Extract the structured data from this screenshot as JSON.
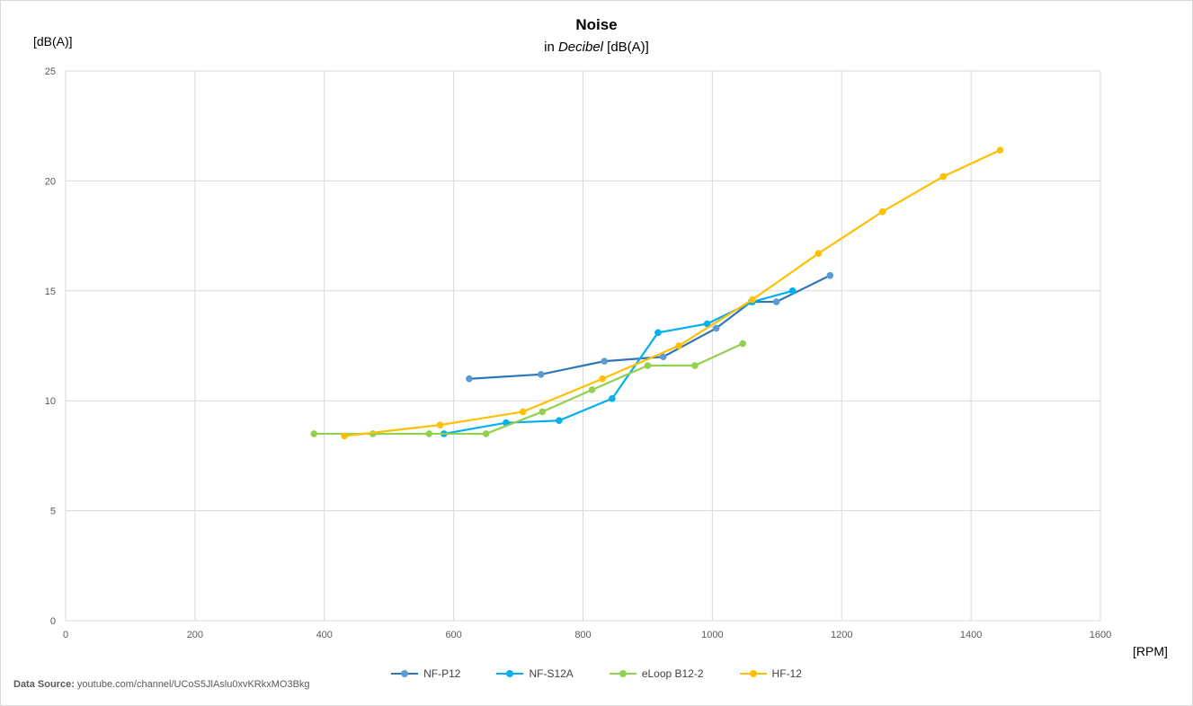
{
  "chart_data": {
    "type": "line",
    "title": "Noise",
    "subtitle_prefix": "in ",
    "subtitle_italic": "Decibel",
    "subtitle_suffix": " [dB(A)]",
    "ylabel": "[dB(A)]",
    "xlabel": "[RPM]",
    "xlim": [
      0,
      1600
    ],
    "ylim": [
      0,
      25
    ],
    "xticks": [
      0,
      200,
      400,
      600,
      800,
      1000,
      1200,
      1400,
      1600
    ],
    "yticks": [
      0,
      5,
      10,
      15,
      20,
      25
    ],
    "grid": true,
    "legend_position": "bottom",
    "series": [
      {
        "name": "NF-P12",
        "color": "#2e75b6",
        "marker_color": "#5b9bd5",
        "points": [
          [
            624,
            11.0
          ],
          [
            735,
            11.2
          ],
          [
            833,
            11.8
          ],
          [
            924,
            12.0
          ],
          [
            1006,
            13.3
          ],
          [
            1060,
            14.5
          ],
          [
            1099,
            14.5
          ],
          [
            1182,
            15.7
          ]
        ]
      },
      {
        "name": "NF-S12A",
        "color": "#00b0f0",
        "marker_color": "#00b0f0",
        "points": [
          [
            585,
            8.5
          ],
          [
            681,
            9.0
          ],
          [
            763,
            9.1
          ],
          [
            845,
            10.1
          ],
          [
            916,
            13.1
          ],
          [
            992,
            13.5
          ],
          [
            1062,
            14.5
          ],
          [
            1124,
            15.0
          ]
        ]
      },
      {
        "name": "eLoop B12-2",
        "color": "#92d050",
        "marker_color": "#92d050",
        "points": [
          [
            384,
            8.5
          ],
          [
            475,
            8.5
          ],
          [
            562,
            8.5
          ],
          [
            650,
            8.5
          ],
          [
            737,
            9.5
          ],
          [
            814,
            10.5
          ],
          [
            900,
            11.6
          ],
          [
            973,
            11.6
          ],
          [
            1047,
            12.6
          ]
        ]
      },
      {
        "name": "HF-12",
        "color": "#ffc000",
        "marker_color": "#ffc000",
        "points": [
          [
            431,
            8.4
          ],
          [
            579,
            8.9
          ],
          [
            707,
            9.5
          ],
          [
            830,
            11.0
          ],
          [
            948,
            12.5
          ],
          [
            1062,
            14.6
          ],
          [
            1164,
            16.7
          ],
          [
            1263,
            18.6
          ],
          [
            1357,
            20.2
          ],
          [
            1445,
            21.4
          ]
        ]
      }
    ]
  },
  "source": {
    "label": "Data Source:",
    "text": "youtube.com/channel/UCoS5JlAslu0xvKRkxMO3Bkg"
  }
}
